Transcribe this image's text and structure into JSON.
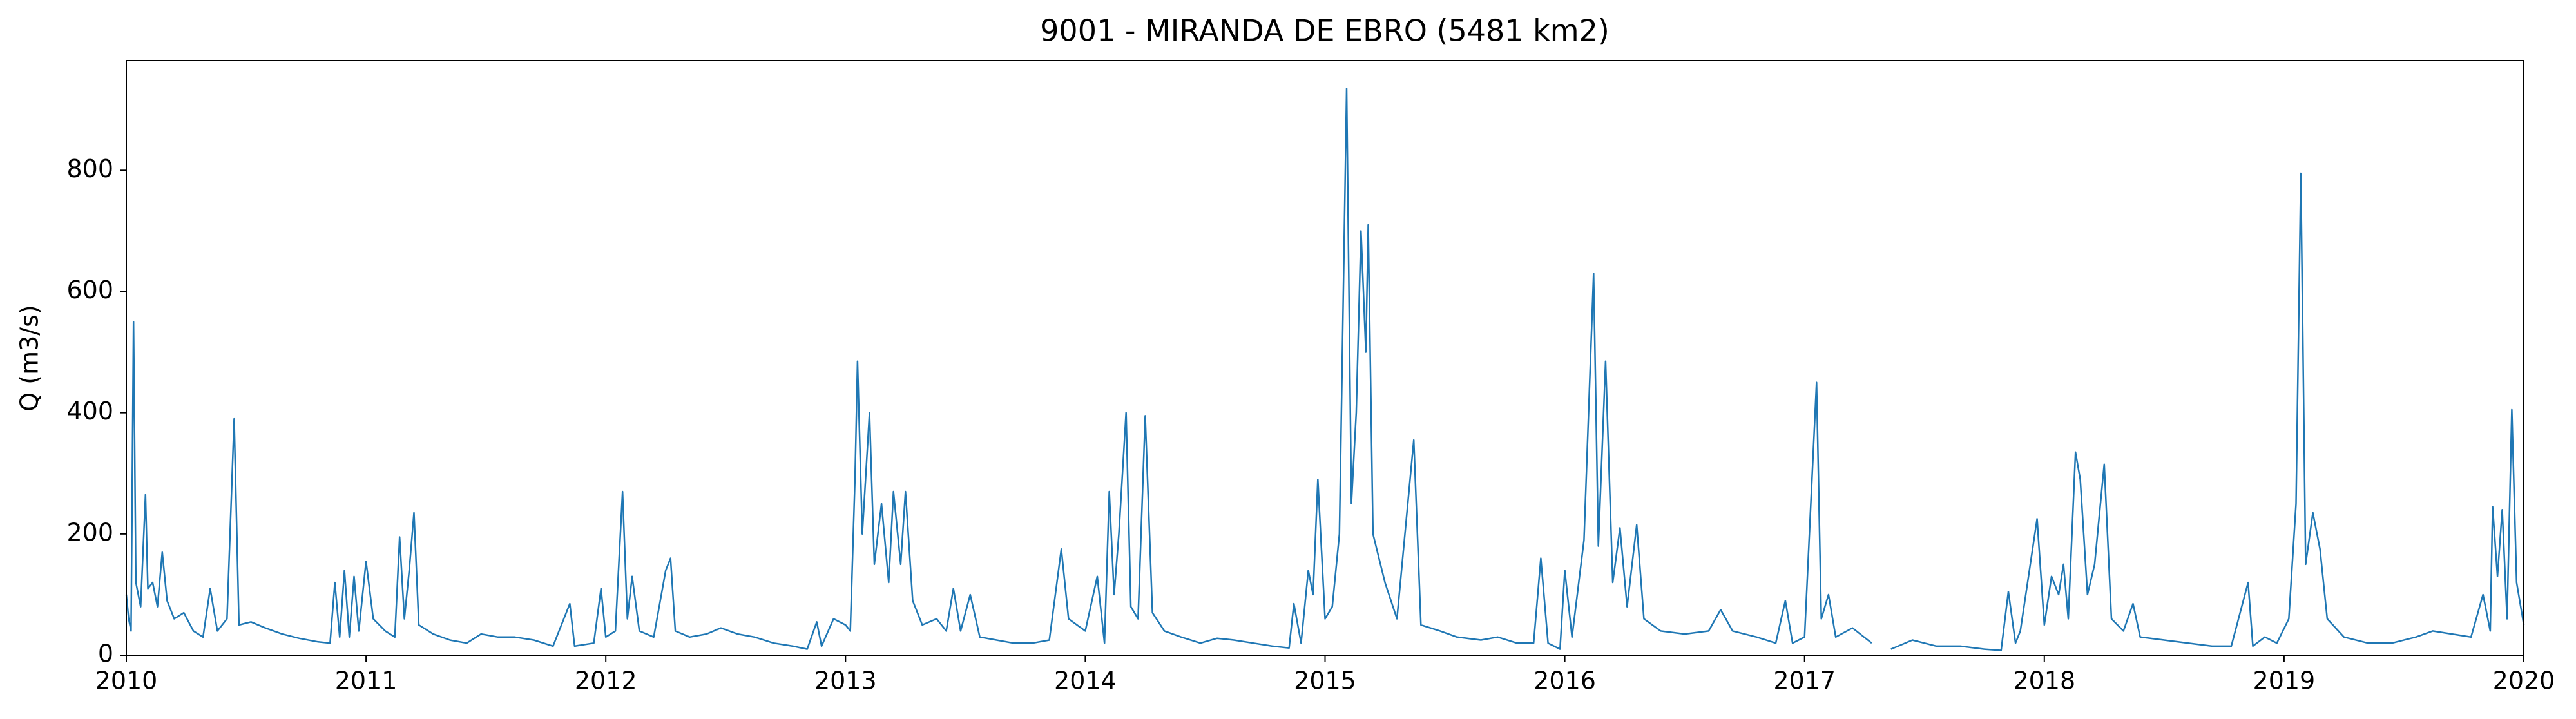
{
  "chart_data": {
    "type": "line",
    "title": "9001 - MIRANDA DE EBRO (5481 km2)",
    "y_label": "Q (m3/s)",
    "xlim": [
      2010,
      2020
    ],
    "xticks": [
      2010,
      2011,
      2012,
      2013,
      2014,
      2015,
      2016,
      2017,
      2018,
      2019,
      2020
    ],
    "ylim": [
      0,
      981
    ],
    "yticks": [
      0,
      200,
      400,
      600,
      800
    ],
    "series": [
      {
        "color": "#1f77b4",
        "x": [
          2010.0,
          2010.01,
          2010.02,
          2010.03,
          2010.04,
          2010.06,
          2010.08,
          2010.09,
          2010.11,
          2010.13,
          2010.15,
          2010.17,
          2010.2,
          2010.24,
          2010.28,
          2010.32,
          2010.35,
          2010.38,
          2010.42,
          2010.45,
          2010.47,
          2010.52,
          2010.58,
          2010.65,
          2010.72,
          2010.8,
          2010.85,
          2010.87,
          2010.89,
          2010.91,
          2010.93,
          2010.95,
          2010.97,
          2011.0,
          2011.03,
          2011.08,
          2011.12,
          2011.14,
          2011.16,
          2011.18,
          2011.2,
          2011.22,
          2011.28,
          2011.35,
          2011.42,
          2011.48,
          2011.55,
          2011.62,
          2011.7,
          2011.78,
          2011.85,
          2011.87,
          2011.95,
          2011.98,
          2012.0,
          2012.04,
          2012.07,
          2012.09,
          2012.11,
          2012.14,
          2012.2,
          2012.25,
          2012.27,
          2012.29,
          2012.35,
          2012.42,
          2012.48,
          2012.55,
          2012.62,
          2012.7,
          2012.78,
          2012.84,
          2012.88,
          2012.9,
          2012.95,
          2013.0,
          2013.02,
          2013.04,
          2013.05,
          2013.07,
          2013.1,
          2013.12,
          2013.15,
          2013.18,
          2013.2,
          2013.23,
          2013.25,
          2013.28,
          2013.32,
          2013.38,
          2013.42,
          2013.45,
          2013.48,
          2013.52,
          2013.56,
          2013.63,
          2013.7,
          2013.78,
          2013.85,
          2013.9,
          2013.93,
          2014.0,
          2014.05,
          2014.08,
          2014.1,
          2014.12,
          2014.14,
          2014.17,
          2014.19,
          2014.22,
          2014.25,
          2014.28,
          2014.33,
          2014.4,
          2014.48,
          2014.55,
          2014.62,
          2014.7,
          2014.78,
          2014.85,
          2014.87,
          2014.9,
          2014.93,
          2014.95,
          2014.97,
          2015.0,
          2015.03,
          2015.06,
          2015.09,
          2015.11,
          2015.13,
          2015.15,
          2015.17,
          2015.18,
          2015.2,
          2015.25,
          2015.3,
          2015.37,
          2015.4,
          2015.48,
          2015.55,
          2015.65,
          2015.72,
          2015.8,
          2015.87,
          2015.9,
          2015.93,
          2015.98,
          2016.0,
          2016.03,
          2016.08,
          2016.12,
          2016.14,
          2016.17,
          2016.2,
          2016.23,
          2016.26,
          2016.3,
          2016.33,
          2016.4,
          2016.5,
          2016.6,
          2016.65,
          2016.7,
          2016.8,
          2016.88,
          2016.92,
          2016.95,
          2017.0,
          2017.05,
          2017.07,
          2017.1,
          2017.13,
          2017.2,
          2017.28,
          2017.32,
          2017.36,
          2017.45,
          2017.55,
          2017.65,
          2017.75,
          2017.82,
          2017.85,
          2017.88,
          2017.9,
          2017.97,
          2018.0,
          2018.03,
          2018.06,
          2018.08,
          2018.1,
          2018.13,
          2018.15,
          2018.18,
          2018.21,
          2018.25,
          2018.28,
          2018.33,
          2018.37,
          2018.4,
          2018.5,
          2018.6,
          2018.7,
          2018.78,
          2018.85,
          2018.87,
          2018.92,
          2018.97,
          2019.02,
          2019.05,
          2019.07,
          2019.09,
          2019.12,
          2019.15,
          2019.18,
          2019.25,
          2019.35,
          2019.45,
          2019.55,
          2019.62,
          2019.7,
          2019.78,
          2019.83,
          2019.86,
          2019.87,
          2019.89,
          2019.91,
          2019.93,
          2019.95,
          2019.97,
          2020.0
        ],
        "values": [
          100,
          60,
          40,
          550,
          120,
          80,
          265,
          110,
          120,
          80,
          170,
          90,
          60,
          70,
          40,
          30,
          110,
          40,
          60,
          390,
          50,
          55,
          45,
          35,
          28,
          22,
          20,
          120,
          30,
          140,
          30,
          130,
          40,
          155,
          60,
          40,
          30,
          195,
          60,
          140,
          235,
          50,
          35,
          25,
          20,
          35,
          30,
          30,
          25,
          15,
          85,
          15,
          20,
          110,
          30,
          40,
          270,
          60,
          130,
          40,
          30,
          140,
          160,
          40,
          30,
          35,
          45,
          35,
          30,
          20,
          15,
          10,
          55,
          15,
          60,
          50,
          40,
          300,
          485,
          200,
          400,
          150,
          250,
          120,
          270,
          150,
          270,
          90,
          50,
          60,
          40,
          110,
          40,
          100,
          30,
          25,
          20,
          20,
          25,
          175,
          60,
          40,
          130,
          20,
          270,
          100,
          200,
          400,
          80,
          60,
          395,
          70,
          40,
          30,
          20,
          28,
          25,
          20,
          15,
          12,
          85,
          20,
          140,
          100,
          290,
          60,
          80,
          200,
          935,
          250,
          400,
          700,
          500,
          710,
          200,
          120,
          60,
          355,
          50,
          40,
          30,
          25,
          30,
          20,
          20,
          160,
          20,
          10,
          140,
          30,
          190,
          630,
          180,
          485,
          120,
          210,
          80,
          215,
          60,
          40,
          35,
          40,
          75,
          40,
          30,
          20,
          90,
          20,
          30,
          450,
          60,
          100,
          30,
          45,
          20,
          null,
          10,
          25,
          15,
          15,
          10,
          8,
          105,
          20,
          40,
          225,
          50,
          130,
          100,
          150,
          60,
          335,
          290,
          100,
          150,
          315,
          60,
          40,
          85,
          30,
          25,
          20,
          15,
          15,
          120,
          15,
          30,
          20,
          60,
          250,
          795,
          150,
          235,
          175,
          60,
          30,
          20,
          20,
          30,
          40,
          35,
          30,
          100,
          40,
          245,
          130,
          240,
          60,
          405,
          120,
          50
        ]
      }
    ]
  }
}
